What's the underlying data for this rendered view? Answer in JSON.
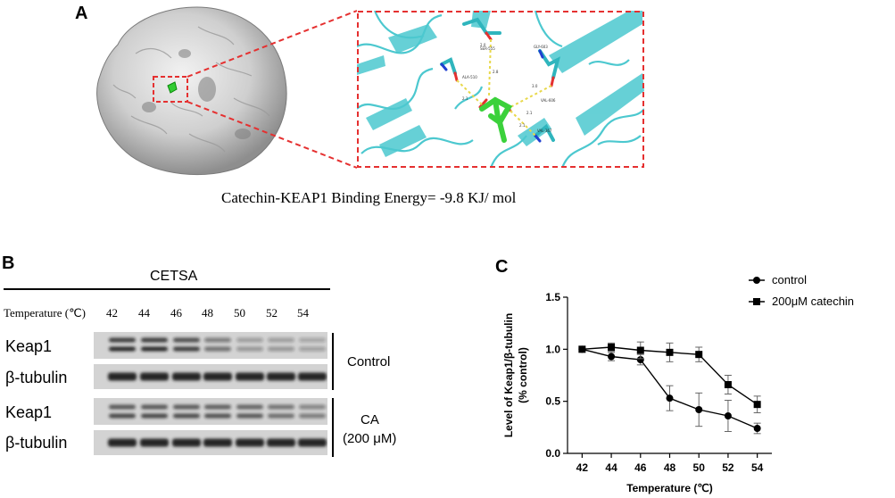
{
  "panel_a": {
    "letter": "A",
    "binding_text": "Catechin-KEAP1 Binding Energy= -9.8 KJ/ mol",
    "residue_labels": [
      "ALA-510",
      "GLY-603",
      "VAL-606",
      "SER-555",
      "VAL-367"
    ],
    "distance_labels": [
      "2.1",
      "2.0",
      "2.8",
      "3.0",
      "2.1",
      "2.1"
    ]
  },
  "panel_b": {
    "letter": "B",
    "header": "CETSA",
    "temperature_label": "Temperature (℃)",
    "temperatures": [
      "42",
      "44",
      "46",
      "48",
      "50",
      "52",
      "54"
    ],
    "rows": [
      {
        "label": "Keap1"
      },
      {
        "label": "β-tubulin"
      },
      {
        "label": "Keap1"
      },
      {
        "label": "β-tubulin"
      }
    ],
    "group_labels": {
      "control": "Control",
      "ca_line1": "CA",
      "ca_line2": "(200 μM)"
    }
  },
  "chart_data": {
    "type": "line",
    "letter": "C",
    "x": [
      42,
      44,
      46,
      48,
      50,
      52,
      54
    ],
    "series": [
      {
        "name": "control",
        "marker": "circle",
        "values": [
          1.0,
          0.93,
          0.9,
          0.53,
          0.42,
          0.36,
          0.24
        ],
        "errors": [
          0.0,
          0.04,
          0.05,
          0.12,
          0.16,
          0.15,
          0.05
        ]
      },
      {
        "name": "200μM catechin",
        "marker": "square",
        "values": [
          1.0,
          1.02,
          0.99,
          0.97,
          0.95,
          0.66,
          0.47
        ],
        "errors": [
          0.0,
          0.04,
          0.08,
          0.09,
          0.07,
          0.09,
          0.08
        ]
      }
    ],
    "xlabel": "Temperature (℃)",
    "ylabel_line1": "Level of Keap1/β-tubulin",
    "ylabel_line2": "(% control)",
    "ylim": [
      0.0,
      1.5
    ],
    "yticks": [
      "0.0",
      "0.5",
      "1.0",
      "1.5"
    ],
    "xticks": [
      "42",
      "44",
      "46",
      "48",
      "50",
      "52",
      "54"
    ],
    "legend_placement": "top-right",
    "grid": false
  }
}
